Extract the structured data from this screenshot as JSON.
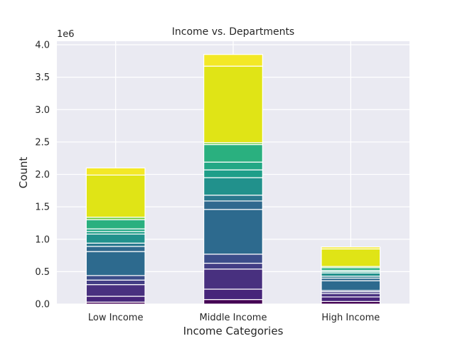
{
  "chart_data": {
    "type": "bar",
    "stacked": true,
    "title": "Income vs. Departments",
    "xlabel": "Income Categories",
    "ylabel": "Count",
    "y_scale_label": "1e6",
    "categories": [
      "Low Income",
      "Middle Income",
      "High Income"
    ],
    "y_ticks": [
      "0.0",
      "0.5",
      "1.0",
      "1.5",
      "2.0",
      "2.5",
      "3.0",
      "3.5",
      "4.0"
    ],
    "ylim": [
      0,
      4.0
    ],
    "y_unit_multiplier": 1000000,
    "grid": true,
    "legend": "none",
    "series": [
      {
        "values": [
          0.03,
          0.07,
          0.04
        ]
      },
      {
        "values": [
          0.09,
          0.16,
          0.07
        ]
      },
      {
        "values": [
          0.18,
          0.31,
          0.05
        ]
      },
      {
        "values": [
          0.07,
          0.09,
          0.03
        ]
      },
      {
        "values": [
          0.07,
          0.14,
          0.02
        ]
      },
      {
        "values": [
          0.37,
          0.69,
          0.15
        ]
      },
      {
        "values": [
          0.08,
          0.13,
          0.04
        ]
      },
      {
        "values": [
          0.05,
          0.09,
          0.03
        ]
      },
      {
        "values": [
          0.14,
          0.27,
          0.05
        ]
      },
      {
        "values": [
          0.04,
          0.12,
          0.02
        ]
      },
      {
        "values": [
          0.04,
          0.12,
          0.02
        ]
      },
      {
        "values": [
          0.14,
          0.27,
          0.04
        ]
      },
      {
        "values": [
          0.04,
          0.03,
          0.02
        ]
      },
      {
        "values": [
          0.65,
          1.18,
          0.27
        ]
      },
      {
        "values": [
          0.11,
          0.18,
          0.03
        ]
      }
    ],
    "colors": [
      "#440154",
      "#46257a",
      "#48307f",
      "#433e85",
      "#3c4d8a",
      "#2d6a8e",
      "#30698e",
      "#2a788e",
      "#21918c",
      "#1f9e89",
      "#22a785",
      "#2ab07f",
      "#7ad151",
      "#e0e416",
      "#f3e826"
    ]
  }
}
